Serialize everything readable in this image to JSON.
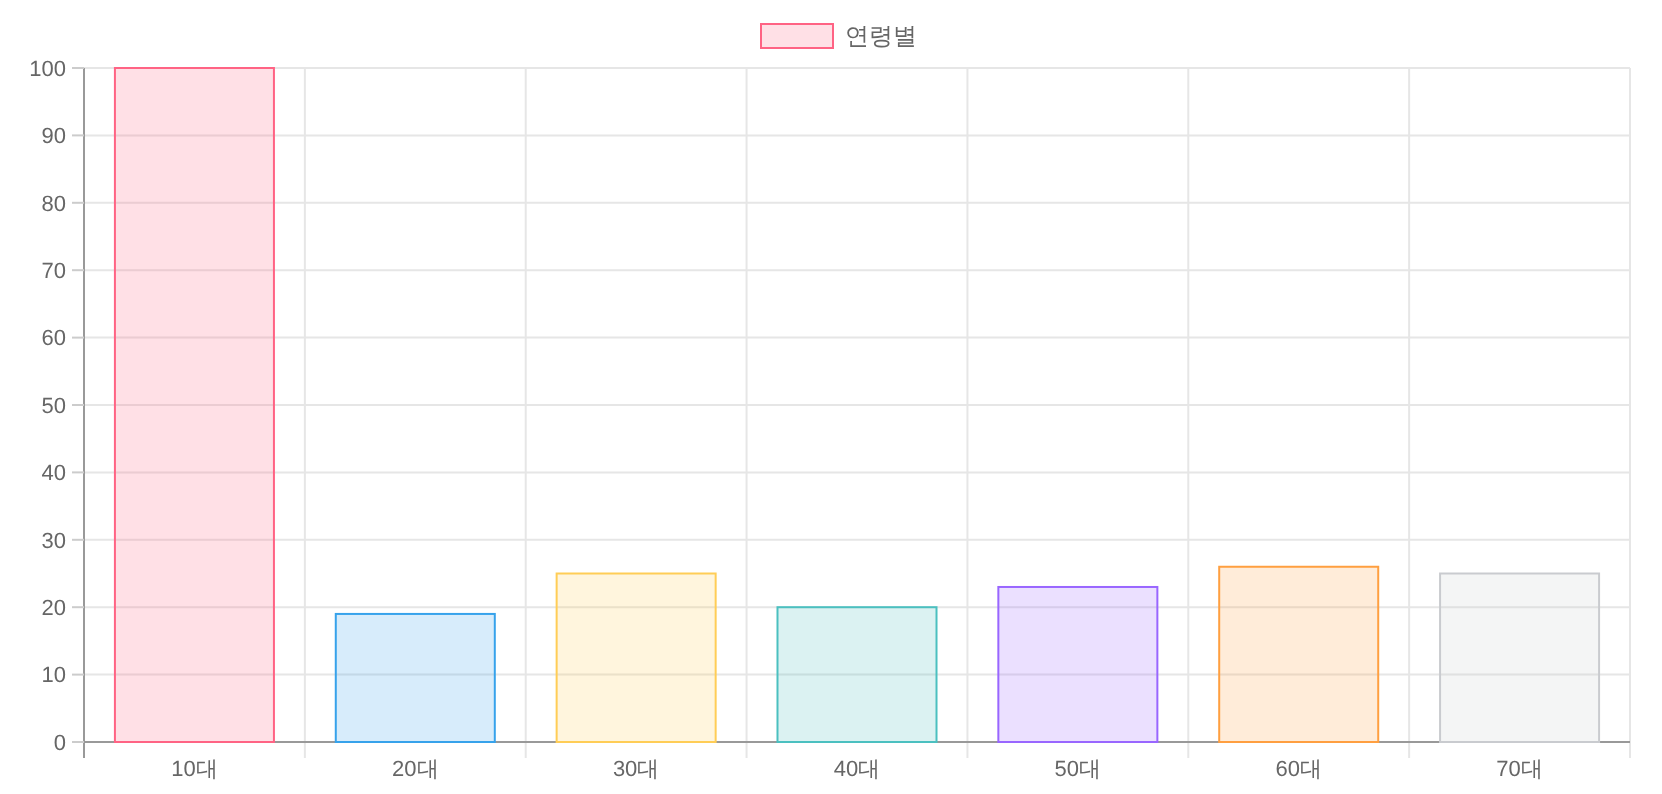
{
  "chart_data": {
    "type": "bar",
    "categories": [
      "10대",
      "20대",
      "30대",
      "40대",
      "50대",
      "60대",
      "70대"
    ],
    "series": [
      {
        "name": "연령별",
        "color": "#ff6384",
        "colors": [
          "#ff6384",
          "#36a2eb",
          "#ffcd56",
          "#4bc0c0",
          "#9966ff",
          "#ff9f40",
          "#c9cbcf"
        ],
        "values": [
          100,
          19,
          25,
          20,
          23,
          26,
          25
        ]
      }
    ],
    "ylim": [
      0,
      100
    ],
    "yticks": [
      0,
      10,
      20,
      30,
      40,
      50,
      60,
      70,
      80,
      90,
      100
    ],
    "grid": true,
    "legend": "top"
  }
}
